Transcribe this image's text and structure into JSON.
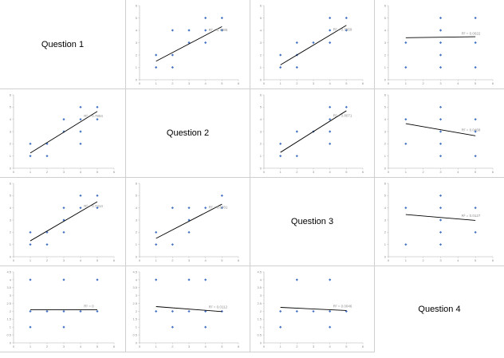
{
  "questions": [
    "Question 1",
    "Question 2",
    "Question 3",
    "Question 4"
  ],
  "chart_data": [
    {
      "id": "p12",
      "type": "scatter",
      "xlim": [
        0,
        6
      ],
      "ylim": [
        0,
        6
      ],
      "trend": [
        0.7,
        0.8
      ],
      "r2": "R² = 0.7385",
      "points": [
        [
          1,
          1
        ],
        [
          1,
          2
        ],
        [
          2,
          1
        ],
        [
          2,
          2
        ],
        [
          2,
          4
        ],
        [
          3,
          3
        ],
        [
          3,
          4
        ],
        [
          4,
          3
        ],
        [
          4,
          4
        ],
        [
          4,
          5
        ],
        [
          5,
          4
        ],
        [
          5,
          5
        ]
      ]
    },
    {
      "id": "p13",
      "type": "scatter",
      "xlim": [
        0,
        6
      ],
      "ylim": [
        0,
        6
      ],
      "trend": [
        0.8,
        0.4
      ],
      "r2": "R² = 0.7959",
      "points": [
        [
          1,
          1
        ],
        [
          1,
          2
        ],
        [
          2,
          1
        ],
        [
          2,
          2
        ],
        [
          2,
          3
        ],
        [
          3,
          3
        ],
        [
          4,
          3
        ],
        [
          4,
          4
        ],
        [
          4,
          5
        ],
        [
          5,
          4
        ],
        [
          5,
          5
        ]
      ]
    },
    {
      "id": "p14",
      "type": "scatter",
      "xlim": [
        0,
        6
      ],
      "ylim": [
        0,
        6
      ],
      "trend": [
        0.02,
        3.38
      ],
      "r2": "R² = 0.0022",
      "points": [
        [
          1,
          1
        ],
        [
          1,
          3
        ],
        [
          3,
          1
        ],
        [
          3,
          2
        ],
        [
          3,
          3
        ],
        [
          3,
          4
        ],
        [
          3,
          5
        ],
        [
          5,
          1
        ],
        [
          5,
          3
        ],
        [
          5,
          5
        ]
      ]
    },
    {
      "id": "p21",
      "type": "scatter",
      "xlim": [
        0,
        6
      ],
      "ylim": [
        0,
        6
      ],
      "trend": [
        0.85,
        0.4
      ],
      "r2": "R² = 0.7804",
      "points": [
        [
          1,
          1
        ],
        [
          1,
          2
        ],
        [
          2,
          1
        ],
        [
          2,
          2
        ],
        [
          3,
          3
        ],
        [
          3,
          4
        ],
        [
          4,
          2
        ],
        [
          4,
          3
        ],
        [
          4,
          4
        ],
        [
          4,
          5
        ],
        [
          5,
          4
        ],
        [
          5,
          5
        ]
      ]
    },
    {
      "id": "p23",
      "type": "scatter",
      "xlim": [
        0,
        6
      ],
      "ylim": [
        0,
        6
      ],
      "trend": [
        0.85,
        0.45
      ],
      "r2": "R² = 0.8071",
      "points": [
        [
          1,
          1
        ],
        [
          1,
          2
        ],
        [
          2,
          1
        ],
        [
          2,
          3
        ],
        [
          3,
          3
        ],
        [
          4,
          2
        ],
        [
          4,
          3
        ],
        [
          4,
          4
        ],
        [
          4,
          5
        ],
        [
          5,
          5
        ]
      ]
    },
    {
      "id": "p24",
      "type": "scatter",
      "xlim": [
        0,
        6
      ],
      "ylim": [
        0,
        6
      ],
      "trend": [
        -0.25,
        3.9
      ],
      "r2": "R² = 0.0468",
      "points": [
        [
          1,
          2
        ],
        [
          1,
          4
        ],
        [
          3,
          1
        ],
        [
          3,
          2
        ],
        [
          3,
          3
        ],
        [
          3,
          4
        ],
        [
          3,
          5
        ],
        [
          5,
          1
        ],
        [
          5,
          3
        ],
        [
          5,
          4
        ]
      ]
    },
    {
      "id": "p31",
      "type": "scatter",
      "xlim": [
        0,
        6
      ],
      "ylim": [
        0,
        6
      ],
      "trend": [
        0.8,
        0.5
      ],
      "r2": "R² = 0.7414",
      "points": [
        [
          1,
          1
        ],
        [
          1,
          2
        ],
        [
          2,
          1
        ],
        [
          2,
          2
        ],
        [
          3,
          2
        ],
        [
          3,
          3
        ],
        [
          3,
          4
        ],
        [
          4,
          4
        ],
        [
          4,
          5
        ],
        [
          5,
          4
        ],
        [
          5,
          5
        ]
      ]
    },
    {
      "id": "p32",
      "type": "scatter",
      "xlim": [
        0,
        6
      ],
      "ylim": [
        0,
        6
      ],
      "trend": [
        0.7,
        0.8
      ],
      "r2": "R² = 0.6781",
      "points": [
        [
          1,
          1
        ],
        [
          1,
          2
        ],
        [
          2,
          1
        ],
        [
          2,
          4
        ],
        [
          3,
          2
        ],
        [
          3,
          3
        ],
        [
          3,
          4
        ],
        [
          4,
          4
        ],
        [
          5,
          4
        ],
        [
          5,
          5
        ]
      ]
    },
    {
      "id": "p34",
      "type": "scatter",
      "xlim": [
        0,
        6
      ],
      "ylim": [
        0,
        6
      ],
      "trend": [
        -0.12,
        3.57
      ],
      "r2": "R² = 0.0127",
      "points": [
        [
          1,
          1
        ],
        [
          1,
          4
        ],
        [
          3,
          1
        ],
        [
          3,
          2
        ],
        [
          3,
          3
        ],
        [
          3,
          4
        ],
        [
          3,
          5
        ],
        [
          5,
          2
        ],
        [
          5,
          4
        ]
      ]
    },
    {
      "id": "p41",
      "type": "scatter",
      "xlim": [
        0,
        6
      ],
      "ylim": [
        0,
        4.5
      ],
      "trend": [
        0.0,
        2.1
      ],
      "r2": "R² = 0",
      "points": [
        [
          1,
          1
        ],
        [
          1,
          2
        ],
        [
          1,
          4
        ],
        [
          2,
          2
        ],
        [
          3,
          1
        ],
        [
          3,
          2
        ],
        [
          3,
          4
        ],
        [
          4,
          2
        ],
        [
          5,
          2
        ],
        [
          5,
          4
        ]
      ]
    },
    {
      "id": "p42",
      "type": "scatter",
      "xlim": [
        0,
        6
      ],
      "ylim": [
        0,
        4.5
      ],
      "trend": [
        -0.08,
        2.38
      ],
      "r2": "R² = 0.0112",
      "points": [
        [
          1,
          2
        ],
        [
          1,
          4
        ],
        [
          2,
          1
        ],
        [
          2,
          2
        ],
        [
          3,
          2
        ],
        [
          3,
          4
        ],
        [
          4,
          1
        ],
        [
          4,
          2
        ],
        [
          4,
          4
        ],
        [
          5,
          2
        ]
      ]
    },
    {
      "id": "p43",
      "type": "scatter",
      "xlim": [
        0,
        6
      ],
      "ylim": [
        0,
        4.5
      ],
      "trend": [
        -0.05,
        2.3
      ],
      "r2": "R² = 0.0046",
      "points": [
        [
          1,
          1
        ],
        [
          1,
          2
        ],
        [
          2,
          2
        ],
        [
          2,
          4
        ],
        [
          3,
          2
        ],
        [
          4,
          1
        ],
        [
          4,
          2
        ],
        [
          4,
          4
        ],
        [
          5,
          2
        ]
      ]
    }
  ]
}
